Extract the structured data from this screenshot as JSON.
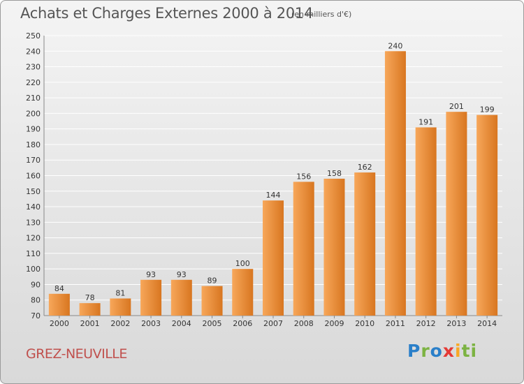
{
  "header": {
    "title": "Achats et Charges Externes 2000 à 2014",
    "unit": "(en milliers d'€)"
  },
  "footer": {
    "commune": "GREZ-NEUVILLE",
    "logo_letters": [
      "P",
      "r",
      "o",
      "x",
      "i",
      "ti"
    ]
  },
  "colors": {
    "bar_light": "#f7a75a",
    "bar_dark": "#d87620",
    "grid": "#ffffff",
    "commune": "#c0504d"
  },
  "chart_data": {
    "type": "bar",
    "categories": [
      "2000",
      "2001",
      "2002",
      "2003",
      "2004",
      "2005",
      "2006",
      "2007",
      "2008",
      "2009",
      "2010",
      "2011",
      "2012",
      "2013",
      "2014"
    ],
    "values": [
      84,
      78,
      81,
      93,
      93,
      89,
      100,
      144,
      156,
      158,
      162,
      240,
      191,
      201,
      199
    ],
    "title": "Achats et Charges Externes 2000 à 2014",
    "xlabel": "",
    "ylabel": "",
    "ylim": [
      70,
      250
    ],
    "ytick_step": 10,
    "grid": true
  }
}
